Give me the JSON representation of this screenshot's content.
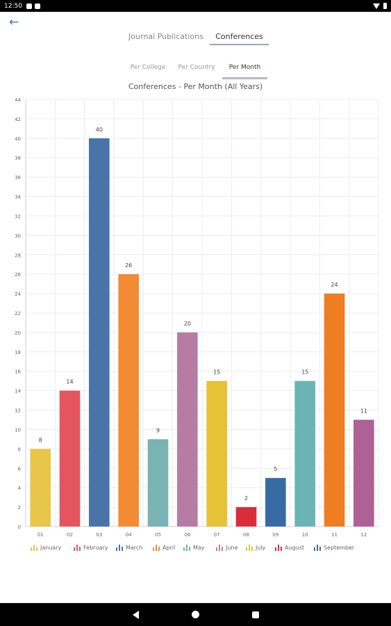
{
  "status_bar": {
    "time": "12:50"
  },
  "tabs": [
    {
      "label": "Journal Publications",
      "active": false
    },
    {
      "label": "Conferences",
      "active": true
    }
  ],
  "subtabs": [
    {
      "label": "Per College",
      "active": false
    },
    {
      "label": "Per Country",
      "active": false
    },
    {
      "label": "Per Month",
      "active": true
    }
  ],
  "chart_data": {
    "type": "bar",
    "title": "Conferences - Per Month (All Years)",
    "categories": [
      "01",
      "02",
      "03",
      "04",
      "05",
      "06",
      "07",
      "08",
      "09",
      "10",
      "11",
      "12"
    ],
    "values": [
      8,
      14,
      40,
      26,
      9,
      20,
      15,
      2,
      5,
      15,
      24,
      11
    ],
    "colors": [
      "#e8c64a",
      "#e5555f",
      "#4a74a8",
      "#f38b35",
      "#79b4b2",
      "#b77ca4",
      "#e7c236",
      "#da2d3a",
      "#386ba3",
      "#6ab5b4",
      "#ef7d22",
      "#ad6194"
    ],
    "ylim": [
      0,
      44
    ],
    "yticks": [
      "0",
      "2",
      "4",
      "6",
      "8",
      "10",
      "12",
      "14",
      "16",
      "18",
      "20",
      "22",
      "24",
      "26",
      "28",
      "30",
      "32",
      "34",
      "36",
      "38",
      "40",
      "42",
      "44"
    ],
    "grid": true,
    "legend_position": "bottom",
    "legend": [
      "January",
      "February",
      "March",
      "April",
      "May",
      "June",
      "July",
      "August",
      "September"
    ]
  }
}
